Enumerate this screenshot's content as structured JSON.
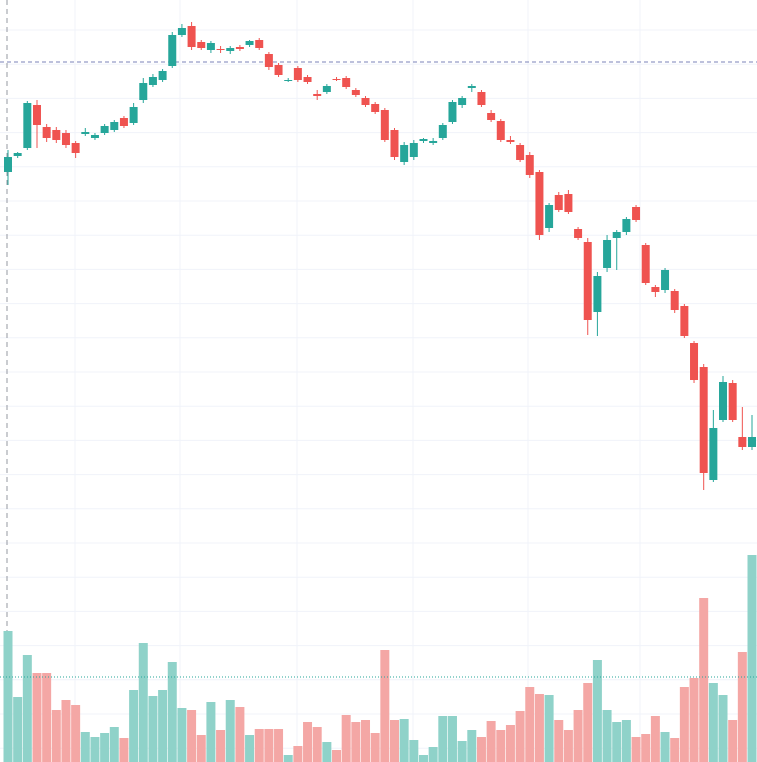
{
  "chart_data": {
    "type": "candlestick",
    "open": [
      628,
      644,
      652,
      695,
      673,
      670,
      667,
      657,
      666,
      662,
      667,
      670,
      682,
      677,
      700,
      715,
      720,
      734,
      765,
      774,
      758,
      750,
      751,
      749,
      753,
      755,
      760,
      746,
      735,
      719,
      732,
      723,
      706,
      708,
      721,
      722,
      710,
      702,
      696,
      690,
      670,
      638,
      643,
      659,
      657,
      662,
      678,
      695,
      712,
      708,
      687,
      679,
      660,
      655,
      645,
      628,
      572,
      605,
      606,
      571,
      558,
      488,
      532,
      562,
      568,
      593,
      555,
      513,
      510,
      509,
      494,
      457,
      433,
      320,
      380,
      417,
      363,
      353
    ],
    "high": [
      650,
      648,
      699,
      700,
      676,
      673,
      670,
      659,
      672,
      667,
      676,
      680,
      684,
      697,
      722,
      726,
      731,
      768,
      776,
      778,
      760,
      759,
      754,
      754,
      755,
      760,
      762,
      748,
      737,
      722,
      734,
      725,
      710,
      716,
      723,
      724,
      712,
      704,
      698,
      692,
      672,
      658,
      660,
      662,
      662,
      677,
      700,
      704,
      716,
      710,
      690,
      681,
      664,
      657,
      648,
      630,
      597,
      608,
      610,
      573,
      562,
      528,
      565,
      570,
      583,
      595,
      557,
      515,
      532,
      511,
      496,
      459,
      436,
      390,
      424,
      420,
      393,
      385
    ],
    "low": [
      615,
      642,
      650,
      652,
      658,
      657,
      652,
      642,
      664,
      660,
      665,
      668,
      672,
      675,
      697,
      713,
      718,
      732,
      763,
      750,
      750,
      747,
      747,
      746,
      749,
      753,
      750,
      730,
      723,
      718,
      718,
      716,
      700,
      706,
      719,
      711,
      703,
      693,
      686,
      658,
      640,
      635,
      640,
      657,
      655,
      660,
      676,
      692,
      708,
      693,
      678,
      658,
      656,
      638,
      622,
      560,
      568,
      588,
      586,
      560,
      465,
      464,
      528,
      530,
      565,
      578,
      515,
      503,
      507,
      487,
      462,
      417,
      310,
      318,
      378,
      378,
      350,
      350
    ],
    "close": [
      643,
      647,
      697,
      675,
      662,
      660,
      655,
      647,
      668,
      665,
      674,
      678,
      674,
      693,
      717,
      723,
      729,
      765,
      772,
      753,
      752,
      757,
      750,
      752,
      751,
      759,
      752,
      733,
      725,
      720,
      720,
      718,
      704,
      714,
      720,
      713,
      705,
      695,
      688,
      660,
      643,
      655,
      657,
      661,
      659,
      675,
      698,
      702,
      714,
      695,
      680,
      660,
      658,
      640,
      625,
      565,
      595,
      590,
      588,
      562,
      480,
      524,
      560,
      568,
      581,
      580,
      517,
      508,
      530,
      490,
      464,
      420,
      327,
      372,
      418,
      380,
      353,
      363
    ],
    "volume": [
      131,
      65,
      107,
      89,
      89,
      52,
      62,
      57,
      30,
      25,
      29,
      35,
      24,
      72,
      119,
      66,
      72,
      100,
      54,
      52,
      27,
      60,
      32,
      62,
      55,
      27,
      33,
      33,
      33,
      7,
      16,
      40,
      35,
      20,
      12,
      47,
      40,
      42,
      29,
      112,
      42,
      43,
      22,
      7,
      15,
      46,
      46,
      21,
      32,
      25,
      41,
      32,
      37,
      51,
      75,
      68,
      67,
      42,
      32,
      52,
      79,
      102,
      52,
      40,
      42,
      25,
      28,
      46,
      30,
      24,
      75,
      84,
      164,
      79,
      67,
      42,
      110,
      207
    ],
    "ylim": [
      38,
      800
    ],
    "volume_ylim": [
      0,
      762
    ],
    "up_color": "#26a69a",
    "down_color": "#ef5350",
    "volume_up_color": "#8fd2c9",
    "volume_down_color": "#f4a7a5",
    "price_line": 738,
    "volume_line": 85
  }
}
